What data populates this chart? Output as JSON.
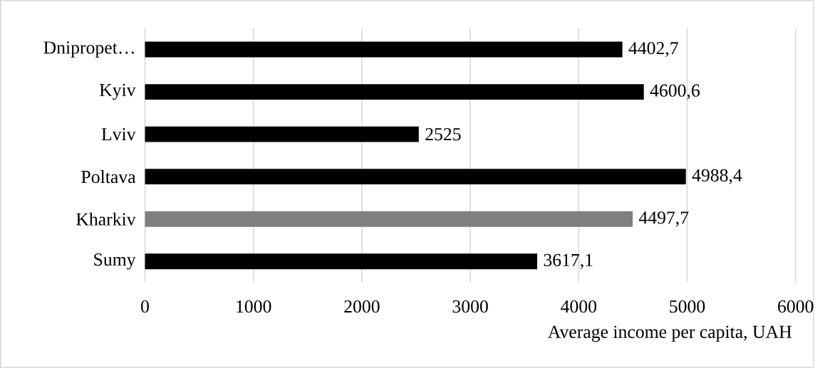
{
  "chart_data": {
    "type": "bar",
    "orientation": "horizontal",
    "xlabel": "Average income per capita, UAH",
    "categories": [
      "Dnipropet…",
      "Kyiv",
      "Lviv",
      "Poltava",
      "Kharkiv",
      "Sumy"
    ],
    "values": [
      4402.7,
      4600.6,
      2525,
      4988.4,
      4497.7,
      3617.1
    ],
    "value_labels": [
      "4402,7",
      "4600,6",
      "2525",
      "4988,4",
      "4497,7",
      "3617,1"
    ],
    "colors": [
      "#000000",
      "#000000",
      "#000000",
      "#000000",
      "#7f7f7f",
      "#000000"
    ],
    "xlim": [
      0,
      6000
    ],
    "xticks": [
      0,
      1000,
      2000,
      3000,
      4000,
      5000,
      6000
    ],
    "grid": "x"
  }
}
